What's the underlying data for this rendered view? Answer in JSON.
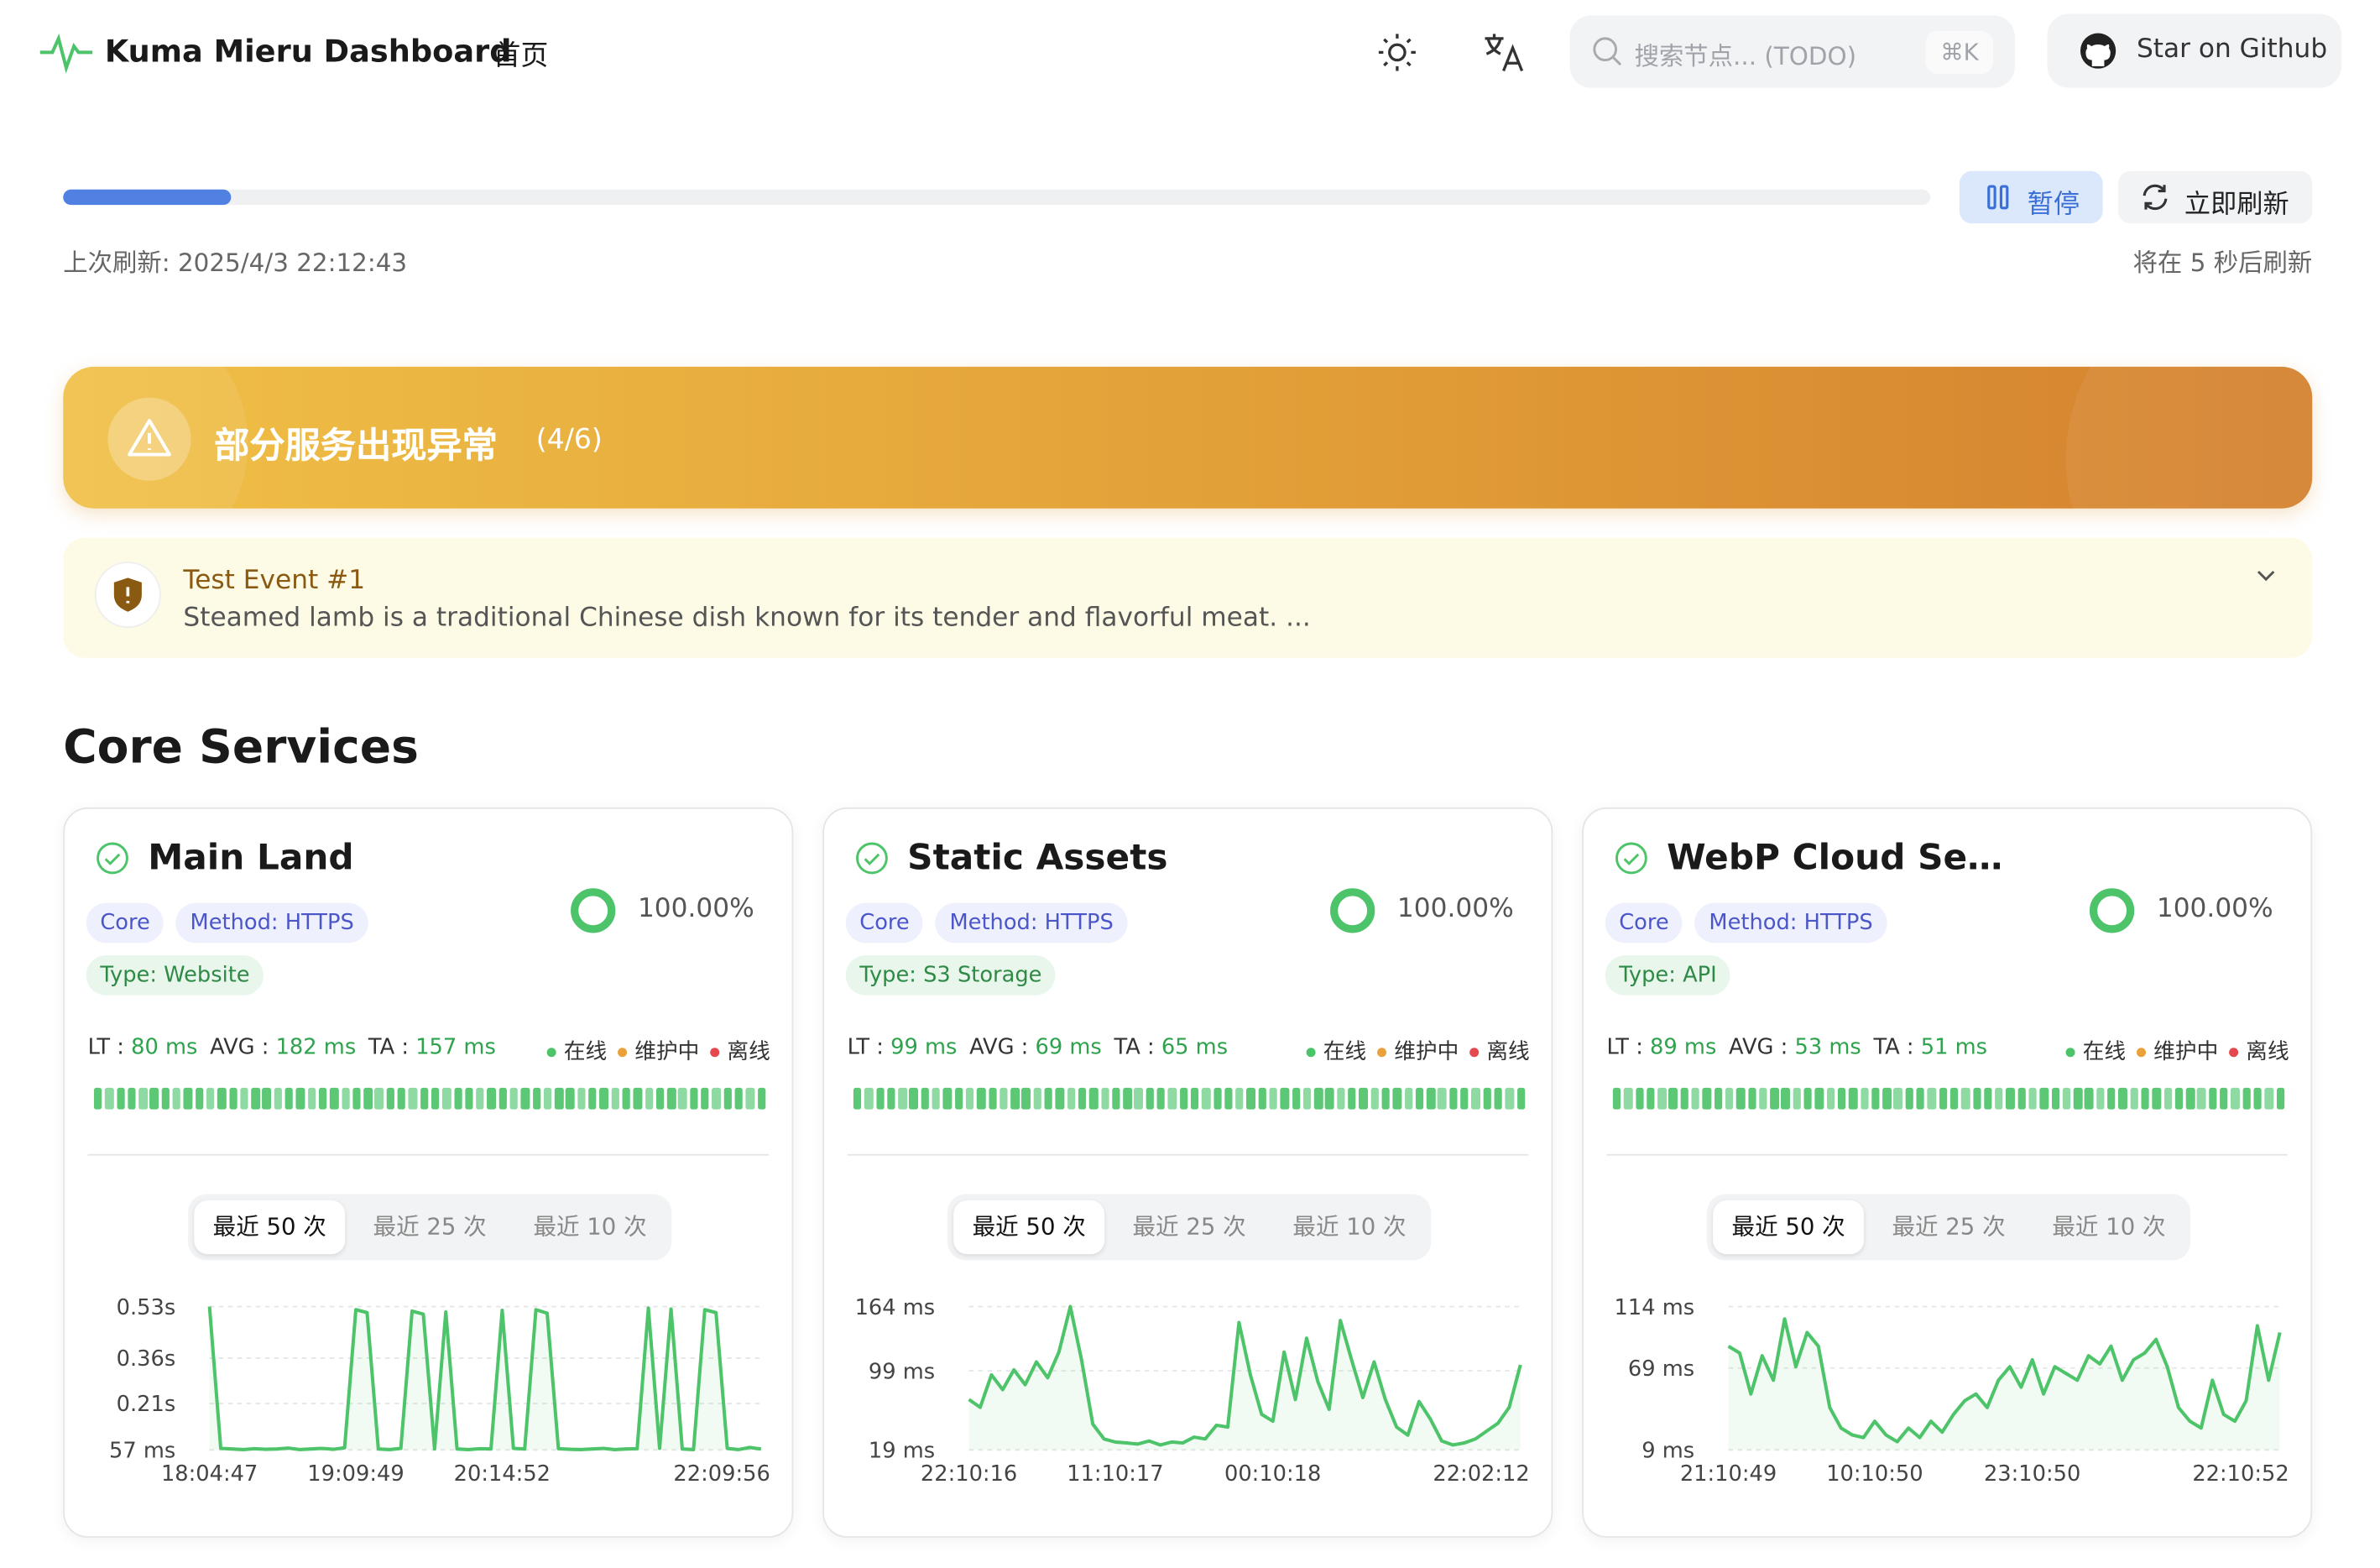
{
  "header": {
    "brand": "Kuma Mieru Dashboard",
    "nav": "首页",
    "search_placeholder": "搜索节点... (TODO)",
    "search_shortcut": "⌘K",
    "github": "Star on Github"
  },
  "refresh": {
    "progress": 9,
    "pause": "暂停",
    "refresh_now": "立即刷新",
    "last_refresh": "上次刷新: 2025/4/3 22:12:43",
    "next_refresh": "将在 5 秒后刷新"
  },
  "status_banner": {
    "title": "部分服务出现异常",
    "count": "(4/6)"
  },
  "event": {
    "title": "Test Event #1",
    "body": "Steamed lamb is a traditional Chinese dish known for its tender and flavorful meat. ..."
  },
  "section_title": "Core Services",
  "cards": [
    {
      "name": "Main Land",
      "tags": [
        "Core",
        "Method: HTTPS"
      ],
      "type_tag": "Type: Website",
      "uptime": {
        "value": 100,
        "label": "100.00%"
      },
      "stats": [
        {
          "label": "LT",
          "value": "80 ms"
        },
        {
          "label": "AVG",
          "value": "182 ms"
        },
        {
          "label": "TA",
          "value": "157 ms"
        }
      ],
      "legend": [
        "在线",
        "维护中",
        "离线"
      ],
      "tabs": [
        "最近 50 次",
        "最近 25 次",
        "最近 10 次"
      ],
      "chart_data": {
        "type": "line",
        "color": "#4ec46a",
        "xlim": [
          0,
          49
        ],
        "ylim": [
          57,
          530
        ],
        "yticks": [
          {
            "value": 530,
            "label": "0.53s"
          },
          {
            "value": 360,
            "label": "0.36s"
          },
          {
            "value": 210,
            "label": "0.21s"
          },
          {
            "value": 57,
            "label": "57 ms"
          }
        ],
        "xticks": [
          {
            "value": 0,
            "label": "18:04:47"
          },
          {
            "value": 13,
            "label": "19:09:49"
          },
          {
            "value": 26,
            "label": "20:14:52"
          },
          {
            "value": 49,
            "label": "22:09:56"
          }
        ],
        "values": [
          530,
          62,
          60,
          58,
          61,
          59,
          60,
          63,
          58,
          60,
          62,
          59,
          64,
          520,
          510,
          60,
          58,
          62,
          515,
          505,
          60,
          512,
          60,
          58,
          61,
          60,
          518,
          62,
          60,
          520,
          508,
          61,
          59,
          58,
          60,
          62,
          58,
          60,
          61,
          525,
          62,
          522,
          60,
          58,
          520,
          510,
          62,
          58,
          65,
          60
        ]
      }
    },
    {
      "name": "Static Assets",
      "tags": [
        "Core",
        "Method: HTTPS"
      ],
      "type_tag": "Type: S3 Storage",
      "uptime": {
        "value": 100,
        "label": "100.00%"
      },
      "stats": [
        {
          "label": "LT",
          "value": "99 ms"
        },
        {
          "label": "AVG",
          "value": "69 ms"
        },
        {
          "label": "TA",
          "value": "65 ms"
        }
      ],
      "legend": [
        "在线",
        "维护中",
        "离线"
      ],
      "tabs": [
        "最近 50 次",
        "最近 25 次",
        "最近 10 次"
      ],
      "chart_data": {
        "type": "line",
        "color": "#4ec46a",
        "xlim": [
          0,
          49
        ],
        "ylim": [
          19,
          164
        ],
        "yticks": [
          {
            "value": 164,
            "label": "164 ms"
          },
          {
            "value": 99,
            "label": "99 ms"
          },
          {
            "value": 19,
            "label": "19 ms"
          }
        ],
        "xticks": [
          {
            "value": 0,
            "label": "22:10:16"
          },
          {
            "value": 13,
            "label": "11:10:17"
          },
          {
            "value": 27,
            "label": "00:10:18"
          },
          {
            "value": 49,
            "label": "22:02:12"
          }
        ],
        "values": [
          70,
          62,
          95,
          80,
          100,
          85,
          108,
          92,
          118,
          164,
          110,
          45,
          30,
          27,
          26,
          25,
          28,
          24,
          27,
          26,
          32,
          30,
          44,
          42,
          148,
          95,
          55,
          48,
          118,
          70,
          132,
          88,
          60,
          150,
          110,
          72,
          108,
          70,
          42,
          34,
          68,
          50,
          28,
          24,
          26,
          30,
          38,
          46,
          62,
          105
        ]
      }
    },
    {
      "name": "WebP Cloud Se…",
      "tags": [
        "Core",
        "Method: HTTPS"
      ],
      "type_tag": "Type: API",
      "uptime": {
        "value": 100,
        "label": "100.00%"
      },
      "stats": [
        {
          "label": "LT",
          "value": "89 ms"
        },
        {
          "label": "AVG",
          "value": "53 ms"
        },
        {
          "label": "TA",
          "value": "51 ms"
        }
      ],
      "legend": [
        "在线",
        "维护中",
        "离线"
      ],
      "tabs": [
        "最近 50 次",
        "最近 25 次",
        "最近 10 次"
      ],
      "chart_data": {
        "type": "line",
        "color": "#4ec46a",
        "xlim": [
          0,
          49
        ],
        "ylim": [
          9,
          114
        ],
        "yticks": [
          {
            "value": 114,
            "label": "114 ms"
          },
          {
            "value": 69,
            "label": "69 ms"
          },
          {
            "value": 9,
            "label": "9 ms"
          }
        ],
        "xticks": [
          {
            "value": 0,
            "label": "21:10:49"
          },
          {
            "value": 13,
            "label": "10:10:50"
          },
          {
            "value": 27,
            "label": "23:10:50"
          },
          {
            "value": 49,
            "label": "22:10:52"
          }
        ],
        "values": [
          85,
          80,
          50,
          78,
          60,
          105,
          70,
          95,
          85,
          40,
          25,
          20,
          18,
          30,
          20,
          15,
          25,
          18,
          30,
          22,
          35,
          45,
          50,
          40,
          60,
          70,
          55,
          75,
          50,
          70,
          65,
          60,
          78,
          72,
          85,
          60,
          75,
          80,
          90,
          70,
          40,
          30,
          25,
          60,
          35,
          30,
          45,
          100,
          60,
          95
        ]
      }
    }
  ]
}
